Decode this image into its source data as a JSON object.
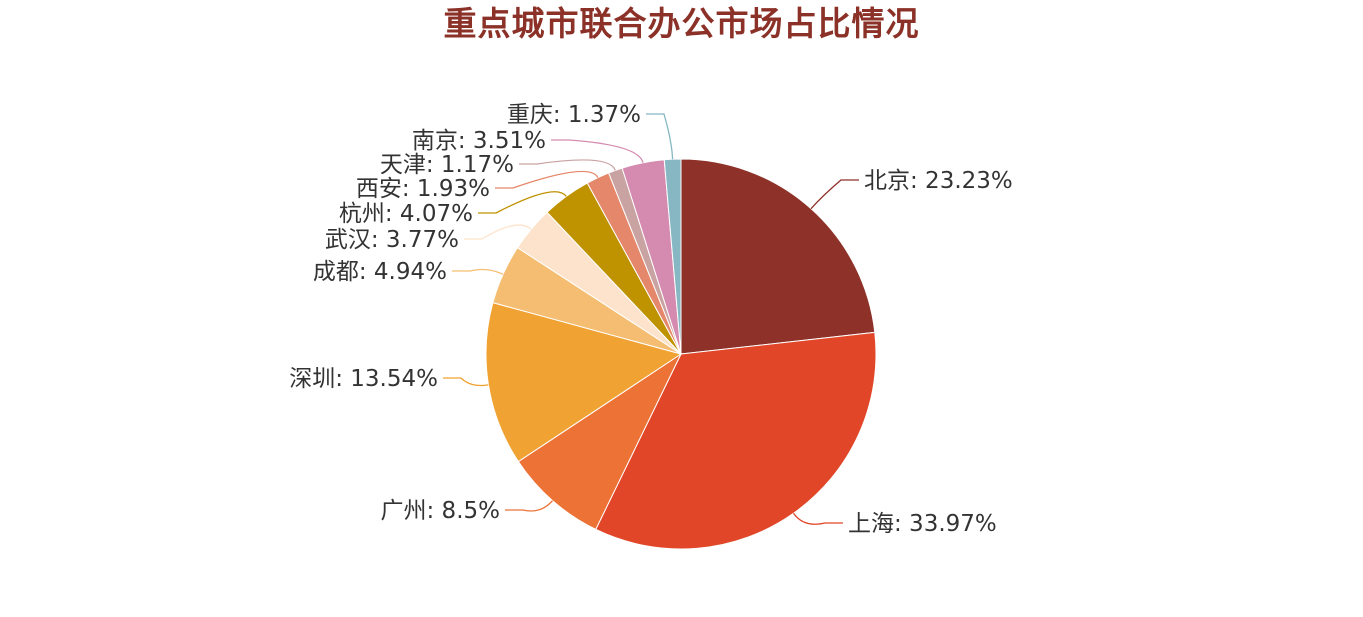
{
  "chart_data": {
    "type": "pie",
    "title": "重点城市联合办公市场占比情况",
    "label_separator": ": ",
    "slices": [
      {
        "name": "北京",
        "value": 23.23,
        "label": "23.23%",
        "color": "#8e3129"
      },
      {
        "name": "上海",
        "value": 33.97,
        "label": "33.97%",
        "color": "#e04627"
      },
      {
        "name": "广州",
        "value": 8.5,
        "label": "8.5%",
        "color": "#ec7236"
      },
      {
        "name": "深圳",
        "value": 13.54,
        "label": "13.54%",
        "color": "#f0a232"
      },
      {
        "name": "成都",
        "value": 4.94,
        "label": "4.94%",
        "color": "#f5bd72"
      },
      {
        "name": "武汉",
        "value": 3.77,
        "label": "3.77%",
        "color": "#fde3cb"
      },
      {
        "name": "杭州",
        "value": 4.07,
        "label": "4.07%",
        "color": "#bf9200"
      },
      {
        "name": "西安",
        "value": 1.93,
        "label": "1.93%",
        "color": "#e5876a"
      },
      {
        "name": "天津",
        "value": 1.17,
        "label": "1.17%",
        "color": "#c9a3a2"
      },
      {
        "name": "南京",
        "value": 3.51,
        "label": "3.51%",
        "color": "#d58bb0"
      },
      {
        "name": "重庆",
        "value": 1.37,
        "label": "1.37%",
        "color": "#86b7c2"
      }
    ]
  }
}
